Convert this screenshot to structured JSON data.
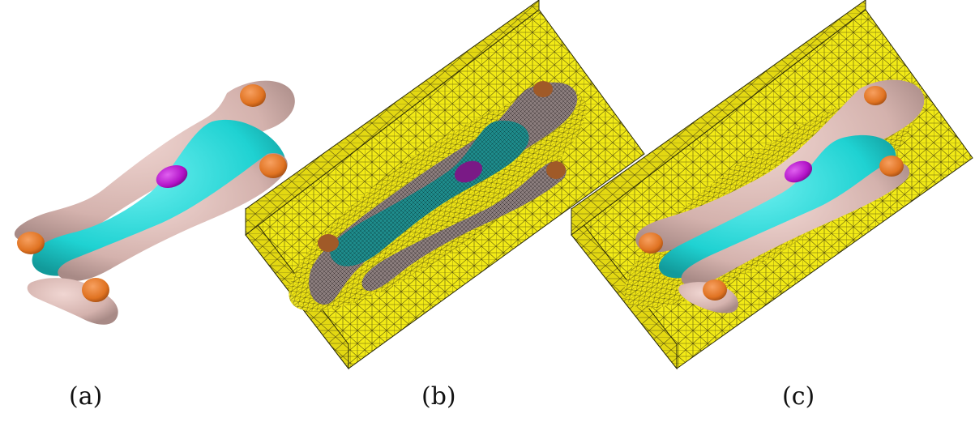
{
  "captions": {
    "a": "(a)",
    "b": "(b)",
    "c": "(c)"
  },
  "colors": {
    "background": "#ffffff",
    "mesh_box": "#f2ea16",
    "mesh_box_side": "#d9cf10",
    "mesh_lines": "#3a3a10",
    "protein_shell": "#d4b2ad",
    "protein_cyan": "#1fd2d2",
    "protein_magenta": "#b214c8",
    "protein_orange": "#e07322",
    "meshed_shell": "#8c7e7e",
    "meshed_cyan": "#1e8c8c",
    "meshed_magenta": "#7a1a86",
    "meshed_orange": "#a05a28"
  }
}
